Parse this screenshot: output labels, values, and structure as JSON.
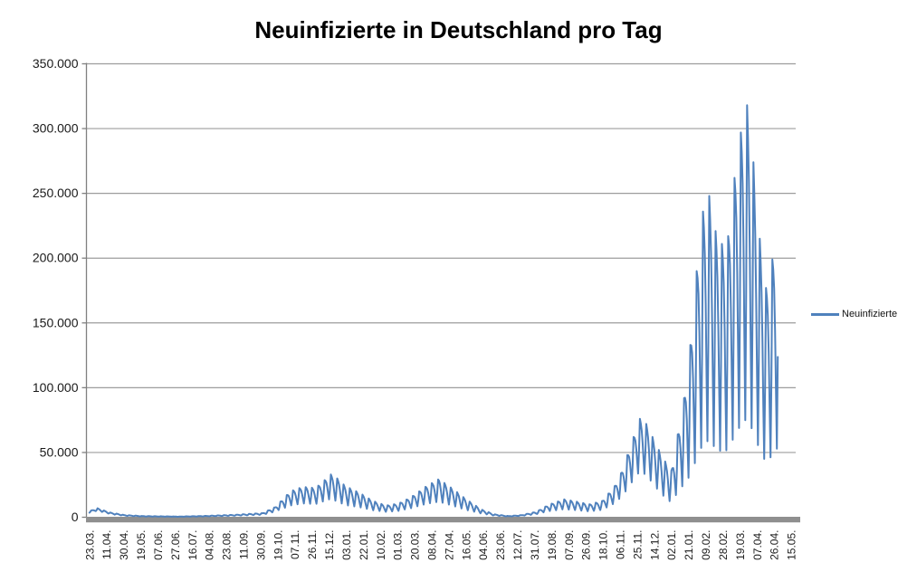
{
  "chart_data": {
    "type": "line",
    "title": "Neuinfizierte in Deutschland pro Tag",
    "xlabel": "",
    "ylabel": "",
    "ylim": [
      0,
      350000
    ],
    "grid": true,
    "y_tick_values": [
      0,
      50000,
      100000,
      150000,
      200000,
      250000,
      300000,
      350000
    ],
    "y_tick_labels": [
      "0",
      "50.000",
      "100.000",
      "150.000",
      "200.000",
      "250.000",
      "300.000",
      "350.000"
    ],
    "x_tick_labels": [
      "23.03.",
      "11.04.",
      "30.04.",
      "19.05.",
      "07.06.",
      "27.06.",
      "16.07.",
      "04.08.",
      "23.08.",
      "11.09.",
      "30.09.",
      "19.10.",
      "07.11.",
      "26.11.",
      "15.12.",
      "03.01.",
      "22.01.",
      "10.02.",
      "01.03.",
      "20.03.",
      "08.04.",
      "27.04.",
      "16.05.",
      "04.06.",
      "23.06.",
      "12.07.",
      "31.07.",
      "19.08.",
      "07.09.",
      "26.09.",
      "18.10.",
      "06.11.",
      "25.11.",
      "14.12.",
      "02.01.",
      "21.01.",
      "09.02.",
      "28.02.",
      "19.03.",
      "07.04.",
      "26.04.",
      "15.05."
    ],
    "x_tick_interval_days": 19,
    "total_categories": 783,
    "legend": {
      "label": "Neuinfizierte",
      "position": "right"
    },
    "colors": {
      "grid": "#9d9d9d",
      "axis": "#808080",
      "axis_bar": "#8f8f8f",
      "tick_text": "#1a1a1a"
    },
    "series": [
      {
        "name": "Neuinfizierte",
        "color": "#4F81BD",
        "start_date": "23.03.2020",
        "end_day": 764,
        "weekly_pattern": [
          1.0,
          0.94,
          0.85,
          0.68,
          0.45,
          0.24,
          0.55
        ],
        "pattern_phase": 5,
        "envelope_anchors": [
          [
            0,
            4800,
            0.35
          ],
          [
            9,
            6900,
            0.35
          ],
          [
            23,
            3600,
            0.4
          ],
          [
            39,
            1700,
            0.45
          ],
          [
            60,
            900,
            0.5
          ],
          [
            100,
            550,
            0.5
          ],
          [
            131,
            1100,
            0.5
          ],
          [
            162,
            1900,
            0.5
          ],
          [
            192,
            3200,
            0.55
          ],
          [
            206,
            7800,
            0.6
          ],
          [
            216,
            15000,
            0.7
          ],
          [
            223,
            20000,
            0.72
          ],
          [
            237,
            23500,
            0.72
          ],
          [
            251,
            22500,
            0.72
          ],
          [
            268,
            33000,
            0.75
          ],
          [
            275,
            30000,
            0.78
          ],
          [
            284,
            24000,
            0.8
          ],
          [
            298,
            19500,
            0.78
          ],
          [
            315,
            12500,
            0.75
          ],
          [
            329,
            9000,
            0.7
          ],
          [
            343,
            10500,
            0.7
          ],
          [
            357,
            15500,
            0.72
          ],
          [
            374,
            24000,
            0.75
          ],
          [
            388,
            29500,
            0.78
          ],
          [
            404,
            21500,
            0.78
          ],
          [
            418,
            14000,
            0.78
          ],
          [
            435,
            6000,
            0.7
          ],
          [
            449,
            2300,
            0.6
          ],
          [
            465,
            950,
            0.5
          ],
          [
            479,
            1600,
            0.5
          ],
          [
            496,
            4200,
            0.6
          ],
          [
            510,
            9800,
            0.68
          ],
          [
            527,
            13800,
            0.72
          ],
          [
            541,
            12000,
            0.72
          ],
          [
            555,
            10000,
            0.72
          ],
          [
            569,
            12500,
            0.72
          ],
          [
            583,
            24000,
            0.72
          ],
          [
            590,
            34000,
            0.72
          ],
          [
            597,
            48000,
            0.72
          ],
          [
            604,
            62000,
            0.7
          ],
          [
            611,
            76000,
            0.7
          ],
          [
            618,
            72000,
            0.72
          ],
          [
            625,
            62000,
            0.75
          ],
          [
            632,
            52000,
            0.8
          ],
          [
            639,
            43000,
            0.85
          ],
          [
            646,
            36000,
            0.9
          ],
          [
            653,
            64000,
            0.92
          ],
          [
            660,
            92000,
            0.95
          ],
          [
            667,
            133000,
            1.0
          ],
          [
            674,
            190000,
            1.0
          ],
          [
            681,
            236000,
            1.0
          ],
          [
            688,
            248000,
            1.0
          ],
          [
            695,
            221000,
            1.0
          ],
          [
            702,
            211000,
            1.0
          ],
          [
            709,
            217000,
            1.0
          ],
          [
            716,
            262000,
            1.0
          ],
          [
            723,
            297000,
            1.0
          ],
          [
            730,
            318000,
            1.0
          ],
          [
            737,
            274000,
            1.0
          ],
          [
            744,
            215000,
            1.0
          ],
          [
            751,
            177000,
            1.0
          ],
          [
            758,
            199000,
            1.0
          ],
          [
            764,
            225000,
            1.0
          ]
        ]
      }
    ]
  }
}
